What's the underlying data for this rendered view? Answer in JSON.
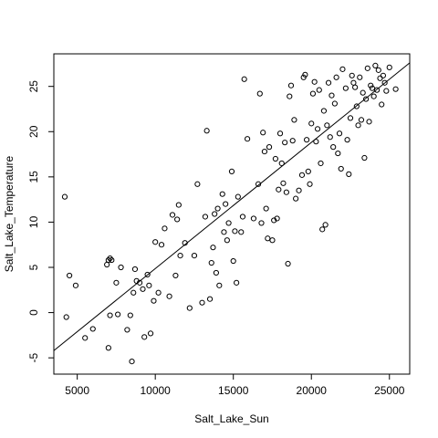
{
  "chart_data": {
    "type": "scatter",
    "title": "",
    "xlabel": "Salt_Lake_Sun",
    "ylabel": "Salt_Lake_Temperature",
    "xlim": [
      3500,
      26300
    ],
    "ylim": [
      -6.8,
      28.6
    ],
    "xticks": [
      5000,
      10000,
      15000,
      20000,
      25000
    ],
    "yticks": [
      -5,
      0,
      5,
      10,
      15,
      20,
      25
    ],
    "xtick_labels": [
      "5000",
      "10000",
      "15000",
      "20000",
      "25000"
    ],
    "ytick_labels": [
      "-5",
      "0",
      "5",
      "10",
      "15",
      "20",
      "25"
    ],
    "grid": false,
    "marker": "open-circle",
    "fit_line": {
      "x": [
        3500,
        26300
      ],
      "y": [
        -4.2,
        27.6
      ]
    },
    "points": [
      [
        4200,
        12.8
      ],
      [
        4300,
        -0.5
      ],
      [
        4500,
        4.1
      ],
      [
        4900,
        3.0
      ],
      [
        5500,
        -2.8
      ],
      [
        6000,
        -1.8
      ],
      [
        6900,
        5.3
      ],
      [
        7000,
        5.8
      ],
      [
        7100,
        6.0
      ],
      [
        7200,
        5.8
      ],
      [
        7000,
        -3.9
      ],
      [
        7100,
        -0.3
      ],
      [
        7500,
        3.3
      ],
      [
        7600,
        -0.2
      ],
      [
        7800,
        5.0
      ],
      [
        8200,
        -1.9
      ],
      [
        8400,
        -0.3
      ],
      [
        8500,
        -5.4
      ],
      [
        8600,
        2.2
      ],
      [
        8700,
        4.8
      ],
      [
        8800,
        3.5
      ],
      [
        9000,
        3.3
      ],
      [
        9200,
        2.6
      ],
      [
        9300,
        -2.7
      ],
      [
        9500,
        4.2
      ],
      [
        9600,
        3.0
      ],
      [
        9700,
        -2.3
      ],
      [
        9900,
        1.3
      ],
      [
        10000,
        7.8
      ],
      [
        10200,
        2.2
      ],
      [
        10400,
        7.5
      ],
      [
        10600,
        9.3
      ],
      [
        10900,
        1.8
      ],
      [
        11100,
        10.8
      ],
      [
        11300,
        4.1
      ],
      [
        11400,
        10.3
      ],
      [
        11500,
        11.9
      ],
      [
        11600,
        6.3
      ],
      [
        11900,
        7.7
      ],
      [
        12200,
        0.5
      ],
      [
        12500,
        6.3
      ],
      [
        12700,
        14.2
      ],
      [
        13000,
        1.1
      ],
      [
        13200,
        10.6
      ],
      [
        13300,
        20.1
      ],
      [
        13500,
        1.5
      ],
      [
        13600,
        5.5
      ],
      [
        13700,
        7.2
      ],
      [
        13800,
        10.9
      ],
      [
        13900,
        4.4
      ],
      [
        14000,
        11.5
      ],
      [
        14100,
        3.0
      ],
      [
        14300,
        13.1
      ],
      [
        14400,
        8.9
      ],
      [
        14500,
        12.0
      ],
      [
        14600,
        8.0
      ],
      [
        14700,
        9.9
      ],
      [
        14900,
        15.6
      ],
      [
        15000,
        5.7
      ],
      [
        15100,
        9.0
      ],
      [
        15200,
        3.3
      ],
      [
        15300,
        12.8
      ],
      [
        15500,
        8.9
      ],
      [
        15600,
        10.6
      ],
      [
        15700,
        25.8
      ],
      [
        15900,
        19.2
      ],
      [
        16300,
        10.4
      ],
      [
        16600,
        14.2
      ],
      [
        16700,
        24.2
      ],
      [
        16800,
        9.9
      ],
      [
        16900,
        19.9
      ],
      [
        17000,
        17.8
      ],
      [
        17100,
        11.5
      ],
      [
        17200,
        8.2
      ],
      [
        17300,
        18.3
      ],
      [
        17500,
        8.0
      ],
      [
        17600,
        10.2
      ],
      [
        17700,
        17.0
      ],
      [
        17800,
        10.4
      ],
      [
        17900,
        13.6
      ],
      [
        18000,
        19.8
      ],
      [
        18100,
        16.5
      ],
      [
        18200,
        14.3
      ],
      [
        18300,
        18.8
      ],
      [
        18400,
        13.3
      ],
      [
        18500,
        5.4
      ],
      [
        18600,
        23.9
      ],
      [
        18700,
        25.1
      ],
      [
        18800,
        19.0
      ],
      [
        18900,
        21.3
      ],
      [
        19000,
        12.6
      ],
      [
        19200,
        13.5
      ],
      [
        19400,
        15.2
      ],
      [
        19500,
        26.0
      ],
      [
        19600,
        26.3
      ],
      [
        19700,
        19.1
      ],
      [
        19800,
        15.6
      ],
      [
        19900,
        14.2
      ],
      [
        20000,
        20.9
      ],
      [
        20100,
        24.2
      ],
      [
        20200,
        25.5
      ],
      [
        20300,
        18.9
      ],
      [
        20400,
        20.3
      ],
      [
        20500,
        24.6
      ],
      [
        20600,
        16.5
      ],
      [
        20700,
        9.2
      ],
      [
        20800,
        22.3
      ],
      [
        20900,
        9.7
      ],
      [
        21000,
        20.7
      ],
      [
        21100,
        25.4
      ],
      [
        21200,
        19.4
      ],
      [
        21300,
        24.0
      ],
      [
        21400,
        18.3
      ],
      [
        21500,
        23.1
      ],
      [
        21600,
        26.0
      ],
      [
        21700,
        17.6
      ],
      [
        21800,
        19.8
      ],
      [
        21900,
        15.9
      ],
      [
        22000,
        26.9
      ],
      [
        22200,
        24.8
      ],
      [
        22300,
        19.1
      ],
      [
        22400,
        15.3
      ],
      [
        22500,
        21.5
      ],
      [
        22600,
        26.2
      ],
      [
        22700,
        25.4
      ],
      [
        22800,
        24.9
      ],
      [
        22900,
        22.8
      ],
      [
        23000,
        20.7
      ],
      [
        23100,
        26.0
      ],
      [
        23200,
        21.3
      ],
      [
        23300,
        24.3
      ],
      [
        23400,
        17.1
      ],
      [
        23500,
        23.6
      ],
      [
        23600,
        27.0
      ],
      [
        23700,
        21.1
      ],
      [
        23800,
        25.1
      ],
      [
        23900,
        24.8
      ],
      [
        24000,
        23.9
      ],
      [
        24100,
        27.3
      ],
      [
        24200,
        24.6
      ],
      [
        24300,
        26.8
      ],
      [
        24400,
        25.9
      ],
      [
        24500,
        23.0
      ],
      [
        24600,
        26.2
      ],
      [
        24700,
        25.4
      ],
      [
        24800,
        24.5
      ],
      [
        25000,
        27.1
      ],
      [
        25400,
        24.7
      ]
    ]
  }
}
